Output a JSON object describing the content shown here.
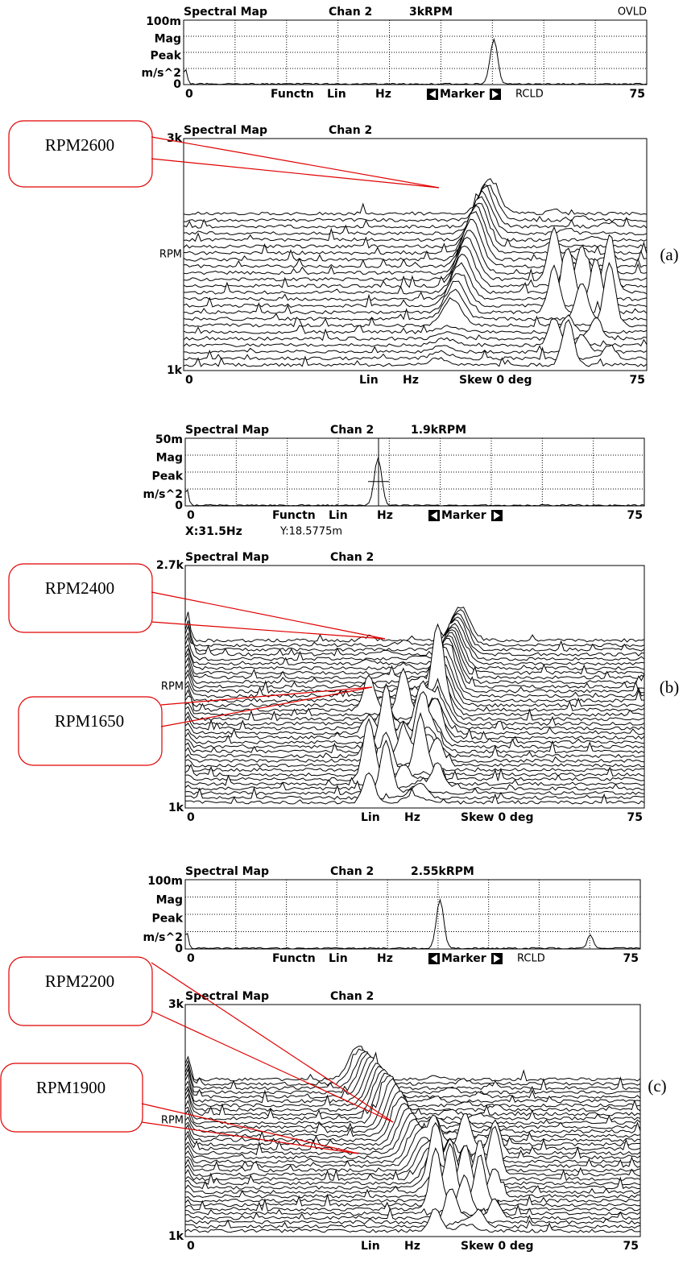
{
  "panels": [
    {
      "label": "(a)",
      "spectrum": {
        "title": "Spectral Map",
        "channel": "Chan 2",
        "rpm": "3kRPM",
        "status": "OVLD",
        "y_labels": [
          "100m",
          "Mag",
          "Peak",
          "m/s^2",
          "0"
        ],
        "x_labels": {
          "start": "0",
          "function": "Functn",
          "scale": "Lin",
          "unit": "Hz",
          "marker": "Marker",
          "mode": "RCLD",
          "end": "75"
        }
      },
      "waterfall": {
        "title": "Spectral Map",
        "channel": "Chan 2",
        "top": "3k",
        "axis": "RPM",
        "bottom": "1k",
        "x_labels": {
          "start": "0",
          "scale": "Lin",
          "unit": "Hz",
          "skew": "Skew 0 deg",
          "end": "75"
        }
      },
      "callouts": [
        "RPM2600"
      ]
    },
    {
      "label": "(b)",
      "spectrum": {
        "title": "Spectral Map",
        "channel": "Chan 2",
        "rpm": "1.9kRPM",
        "y_labels": [
          "50m",
          "Mag",
          "Peak",
          "m/s^2",
          "0"
        ],
        "x_labels": {
          "start": "0",
          "function": "Functn",
          "scale": "Lin",
          "unit": "Hz",
          "marker": "Marker",
          "end": "75"
        }
      },
      "readout": {
        "x": "X:31.5Hz",
        "y": "Y:18.5775m"
      },
      "waterfall": {
        "title": "Spectral Map",
        "channel": "Chan 2",
        "top": "2.7k",
        "axis": "RPM",
        "bottom": "1k",
        "x_labels": {
          "start": "0",
          "scale": "Lin",
          "unit": "Hz",
          "skew": "Skew 0 deg",
          "end": "75"
        }
      },
      "callouts": [
        "RPM2400",
        "RPM1650"
      ]
    },
    {
      "label": "(c)",
      "spectrum": {
        "title": "Spectral Map",
        "channel": "Chan 2",
        "rpm": "2.55kRPM",
        "y_labels": [
          "100m",
          "Mag",
          "Peak",
          "m/s^2",
          "0"
        ],
        "x_labels": {
          "start": "0",
          "function": "Functn",
          "scale": "Lin",
          "unit": "Hz",
          "marker": "Marker",
          "mode": "RCLD",
          "end": "75"
        }
      },
      "waterfall": {
        "title": "Spectral Map",
        "channel": "Chan 2",
        "top": "3k",
        "axis": "RPM",
        "bottom": "1k",
        "x_labels": {
          "start": "0",
          "scale": "Lin",
          "unit": "Hz",
          "skew": "Skew 0 deg",
          "end": "75"
        }
      },
      "callouts": [
        "RPM2200",
        "RPM1900"
      ]
    }
  ]
}
